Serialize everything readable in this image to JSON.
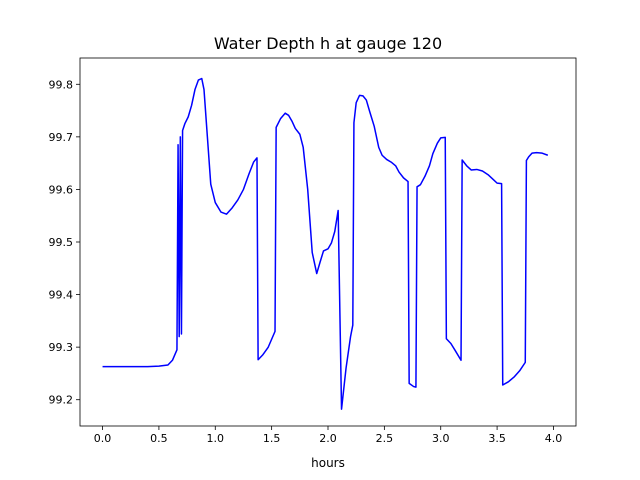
{
  "chart_data": {
    "type": "line",
    "title": "Water Depth h at gauge 120",
    "xlabel": "hours",
    "ylabel": "",
    "xlim": [
      -0.2,
      4.2
    ],
    "ylim": [
      99.15,
      99.85
    ],
    "xticks": [
      {
        "value": 0.0,
        "label": "0.0"
      },
      {
        "value": 0.5,
        "label": "0.5"
      },
      {
        "value": 1.0,
        "label": "1.0"
      },
      {
        "value": 1.5,
        "label": "1.5"
      },
      {
        "value": 2.0,
        "label": "2.0"
      },
      {
        "value": 2.5,
        "label": "2.5"
      },
      {
        "value": 3.0,
        "label": "3.0"
      },
      {
        "value": 3.5,
        "label": "3.5"
      },
      {
        "value": 4.0,
        "label": "4.0"
      }
    ],
    "yticks": [
      {
        "value": 99.2,
        "label": "99.2"
      },
      {
        "value": 99.3,
        "label": "99.3"
      },
      {
        "value": 99.4,
        "label": "99.4"
      },
      {
        "value": 99.5,
        "label": "99.5"
      },
      {
        "value": 99.6,
        "label": "99.6"
      },
      {
        "value": 99.7,
        "label": "99.7"
      },
      {
        "value": 99.8,
        "label": "99.8"
      }
    ],
    "grid": false,
    "legend": "none",
    "series": [
      {
        "color": "#0000ff",
        "points": [
          [
            0.0,
            99.263
          ],
          [
            0.1,
            99.263
          ],
          [
            0.2,
            99.263
          ],
          [
            0.3,
            99.263
          ],
          [
            0.4,
            99.263
          ],
          [
            0.5,
            99.264
          ],
          [
            0.58,
            99.266
          ],
          [
            0.62,
            99.275
          ],
          [
            0.66,
            99.295
          ],
          [
            0.67,
            99.685
          ],
          [
            0.68,
            99.32
          ],
          [
            0.69,
            99.7
          ],
          [
            0.7,
            99.325
          ],
          [
            0.71,
            99.712
          ],
          [
            0.73,
            99.725
          ],
          [
            0.76,
            99.738
          ],
          [
            0.79,
            99.76
          ],
          [
            0.82,
            99.79
          ],
          [
            0.85,
            99.808
          ],
          [
            0.88,
            99.811
          ],
          [
            0.9,
            99.79
          ],
          [
            0.93,
            99.7
          ],
          [
            0.96,
            99.61
          ],
          [
            1.0,
            99.575
          ],
          [
            1.05,
            99.557
          ],
          [
            1.1,
            99.553
          ],
          [
            1.15,
            99.565
          ],
          [
            1.2,
            99.58
          ],
          [
            1.25,
            99.6
          ],
          [
            1.3,
            99.63
          ],
          [
            1.34,
            99.652
          ],
          [
            1.37,
            99.66
          ],
          [
            1.38,
            99.276
          ],
          [
            1.42,
            99.285
          ],
          [
            1.47,
            99.3
          ],
          [
            1.53,
            99.33
          ],
          [
            1.54,
            99.718
          ],
          [
            1.58,
            99.735
          ],
          [
            1.62,
            99.745
          ],
          [
            1.65,
            99.741
          ],
          [
            1.68,
            99.73
          ],
          [
            1.71,
            99.716
          ],
          [
            1.75,
            99.705
          ],
          [
            1.78,
            99.68
          ],
          [
            1.82,
            99.6
          ],
          [
            1.86,
            99.48
          ],
          [
            1.9,
            99.44
          ],
          [
            1.93,
            99.462
          ],
          [
            1.96,
            99.483
          ],
          [
            2.0,
            99.487
          ],
          [
            2.03,
            99.498
          ],
          [
            2.06,
            99.52
          ],
          [
            2.09,
            99.56
          ],
          [
            2.12,
            99.182
          ],
          [
            2.16,
            99.26
          ],
          [
            2.2,
            99.32
          ],
          [
            2.22,
            99.342
          ],
          [
            2.23,
            99.727
          ],
          [
            2.25,
            99.765
          ],
          [
            2.28,
            99.779
          ],
          [
            2.31,
            99.778
          ],
          [
            2.34,
            99.77
          ],
          [
            2.37,
            99.748
          ],
          [
            2.41,
            99.72
          ],
          [
            2.45,
            99.68
          ],
          [
            2.48,
            99.665
          ],
          [
            2.52,
            99.657
          ],
          [
            2.56,
            99.652
          ],
          [
            2.6,
            99.645
          ],
          [
            2.63,
            99.633
          ],
          [
            2.67,
            99.622
          ],
          [
            2.71,
            99.615
          ],
          [
            2.72,
            99.231
          ],
          [
            2.76,
            99.225
          ],
          [
            2.78,
            99.224
          ],
          [
            2.79,
            99.605
          ],
          [
            2.82,
            99.609
          ],
          [
            2.86,
            99.625
          ],
          [
            2.9,
            99.645
          ],
          [
            2.93,
            99.668
          ],
          [
            2.97,
            99.688
          ],
          [
            3.0,
            99.698
          ],
          [
            3.04,
            99.699
          ],
          [
            3.05,
            99.316
          ],
          [
            3.09,
            99.307
          ],
          [
            3.13,
            99.293
          ],
          [
            3.18,
            99.275
          ],
          [
            3.19,
            99.656
          ],
          [
            3.23,
            99.645
          ],
          [
            3.27,
            99.637
          ],
          [
            3.32,
            99.638
          ],
          [
            3.37,
            99.635
          ],
          [
            3.42,
            99.628
          ],
          [
            3.47,
            99.618
          ],
          [
            3.5,
            99.612
          ],
          [
            3.54,
            99.611
          ],
          [
            3.55,
            99.228
          ],
          [
            3.6,
            99.234
          ],
          [
            3.65,
            99.243
          ],
          [
            3.7,
            99.255
          ],
          [
            3.75,
            99.271
          ],
          [
            3.76,
            99.655
          ],
          [
            3.78,
            99.662
          ],
          [
            3.81,
            99.669
          ],
          [
            3.85,
            99.67
          ],
          [
            3.9,
            99.669
          ],
          [
            3.95,
            99.665
          ]
        ]
      }
    ]
  }
}
